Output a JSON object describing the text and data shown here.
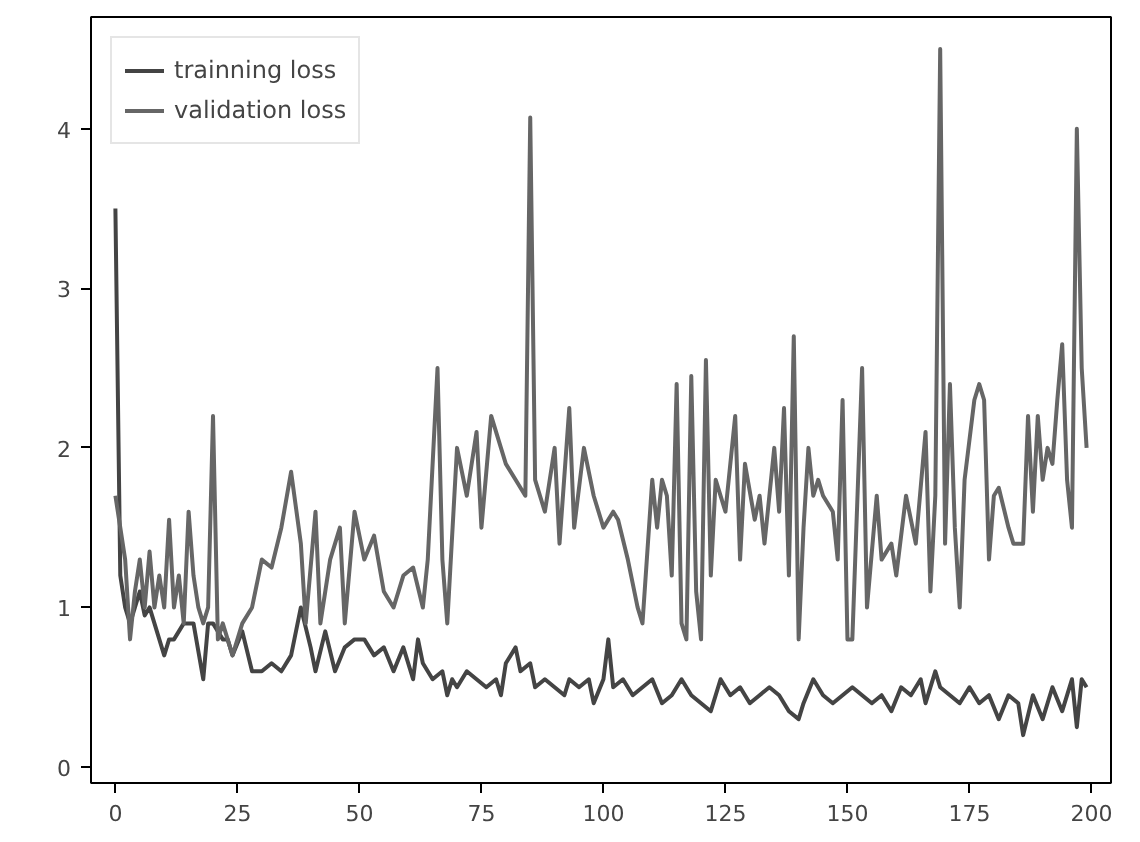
{
  "chart_data": {
    "type": "line",
    "xlim": [
      -5,
      204
    ],
    "ylim": [
      -0.1,
      4.7
    ],
    "xticks": [
      0,
      25,
      50,
      75,
      100,
      125,
      150,
      175,
      200
    ],
    "yticks": [
      0,
      1,
      2,
      3,
      4
    ],
    "grid": false,
    "legend": "top left",
    "line_style": "solid",
    "marker": "none",
    "series": [
      {
        "name": "trainning loss",
        "color": "#444444",
        "x": [
          0,
          1,
          2,
          3,
          5,
          6,
          7,
          8,
          10,
          11,
          12,
          14,
          16,
          18,
          19,
          20,
          22,
          23,
          24,
          26,
          28,
          30,
          32,
          34,
          36,
          38,
          40,
          41,
          43,
          45,
          47,
          49,
          51,
          53,
          55,
          57,
          59,
          61,
          62,
          63,
          65,
          67,
          68,
          69,
          70,
          72,
          74,
          76,
          78,
          79,
          80,
          82,
          83,
          85,
          86,
          88,
          90,
          92,
          93,
          95,
          97,
          98,
          100,
          101,
          102,
          104,
          106,
          108,
          110,
          112,
          114,
          116,
          118,
          120,
          122,
          124,
          126,
          128,
          130,
          132,
          134,
          136,
          138,
          140,
          141,
          143,
          145,
          147,
          149,
          151,
          153,
          155,
          157,
          159,
          161,
          163,
          165,
          166,
          168,
          169,
          171,
          173,
          175,
          177,
          179,
          181,
          183,
          185,
          186,
          188,
          190,
          192,
          194,
          196,
          197,
          198,
          199
        ],
        "values": [
          3.5,
          1.2,
          1.0,
          0.9,
          1.1,
          0.95,
          1.0,
          0.9,
          0.7,
          0.8,
          0.8,
          0.9,
          0.9,
          0.55,
          0.9,
          0.9,
          0.8,
          0.8,
          0.7,
          0.85,
          0.6,
          0.6,
          0.65,
          0.6,
          0.7,
          1.0,
          0.75,
          0.6,
          0.85,
          0.6,
          0.75,
          0.8,
          0.8,
          0.7,
          0.75,
          0.6,
          0.75,
          0.55,
          0.8,
          0.65,
          0.55,
          0.6,
          0.45,
          0.55,
          0.5,
          0.6,
          0.55,
          0.5,
          0.55,
          0.45,
          0.65,
          0.75,
          0.6,
          0.65,
          0.5,
          0.55,
          0.5,
          0.45,
          0.55,
          0.5,
          0.55,
          0.4,
          0.55,
          0.8,
          0.5,
          0.55,
          0.45,
          0.5,
          0.55,
          0.4,
          0.45,
          0.55,
          0.45,
          0.4,
          0.35,
          0.55,
          0.45,
          0.5,
          0.4,
          0.45,
          0.5,
          0.45,
          0.35,
          0.3,
          0.4,
          0.55,
          0.45,
          0.4,
          0.45,
          0.5,
          0.45,
          0.4,
          0.45,
          0.35,
          0.5,
          0.45,
          0.55,
          0.4,
          0.6,
          0.5,
          0.45,
          0.4,
          0.5,
          0.4,
          0.45,
          0.3,
          0.45,
          0.4,
          0.2,
          0.45,
          0.3,
          0.5,
          0.35,
          0.55,
          0.25,
          0.55,
          0.5
        ]
      },
      {
        "name": "validation loss",
        "color": "#666666",
        "x": [
          0,
          1,
          2,
          3,
          4,
          5,
          6,
          7,
          8,
          9,
          10,
          11,
          12,
          13,
          14,
          15,
          16,
          17,
          18,
          19,
          20,
          21,
          22,
          24,
          26,
          28,
          30,
          32,
          34,
          36,
          38,
          39,
          41,
          42,
          44,
          46,
          47,
          49,
          51,
          53,
          55,
          57,
          59,
          61,
          63,
          64,
          66,
          67,
          68,
          70,
          72,
          74,
          75,
          77,
          79,
          80,
          82,
          84,
          85,
          86,
          88,
          90,
          91,
          93,
          94,
          96,
          98,
          100,
          102,
          103,
          105,
          107,
          108,
          110,
          111,
          112,
          113,
          114,
          115,
          116,
          117,
          118,
          119,
          120,
          121,
          122,
          123,
          125,
          127,
          128,
          129,
          131,
          132,
          133,
          135,
          136,
          137,
          138,
          139,
          140,
          141,
          142,
          143,
          144,
          145,
          147,
          148,
          149,
          150,
          151,
          153,
          154,
          156,
          157,
          159,
          160,
          162,
          164,
          166,
          167,
          168,
          169,
          170,
          171,
          172,
          173,
          174,
          176,
          177,
          178,
          179,
          180,
          181,
          183,
          184,
          186,
          187,
          188,
          189,
          190,
          191,
          192,
          193,
          194,
          195,
          196,
          197,
          198,
          199
        ],
        "values": [
          1.7,
          1.5,
          1.3,
          0.8,
          1.1,
          1.3,
          1.0,
          1.35,
          1.0,
          1.2,
          1.0,
          1.55,
          1.0,
          1.2,
          0.9,
          1.6,
          1.2,
          1.0,
          0.9,
          1.0,
          2.2,
          0.8,
          0.9,
          0.7,
          0.9,
          1.0,
          1.3,
          1.25,
          1.5,
          1.85,
          1.4,
          0.9,
          1.6,
          0.9,
          1.3,
          1.5,
          0.9,
          1.6,
          1.3,
          1.45,
          1.1,
          1.0,
          1.2,
          1.25,
          1.0,
          1.3,
          2.5,
          1.3,
          0.9,
          2.0,
          1.7,
          2.1,
          1.5,
          2.2,
          2.0,
          1.9,
          1.8,
          1.7,
          4.07,
          1.8,
          1.6,
          2.0,
          1.4,
          2.25,
          1.5,
          2.0,
          1.7,
          1.5,
          1.6,
          1.55,
          1.3,
          1.0,
          0.9,
          1.8,
          1.5,
          1.8,
          1.7,
          1.2,
          2.4,
          0.9,
          0.8,
          2.45,
          1.1,
          0.8,
          2.55,
          1.2,
          1.8,
          1.6,
          2.2,
          1.3,
          1.9,
          1.55,
          1.7,
          1.4,
          2.0,
          1.6,
          2.25,
          1.2,
          2.7,
          0.8,
          1.5,
          2.0,
          1.7,
          1.8,
          1.7,
          1.6,
          1.3,
          2.3,
          0.8,
          0.8,
          2.5,
          1.0,
          1.7,
          1.3,
          1.4,
          1.2,
          1.7,
          1.4,
          2.1,
          1.1,
          1.7,
          4.5,
          1.4,
          2.4,
          1.5,
          1.0,
          1.8,
          2.3,
          2.4,
          2.3,
          1.3,
          1.7,
          1.75,
          1.5,
          1.4,
          1.4,
          2.2,
          1.6,
          2.2,
          1.8,
          2.0,
          1.9,
          2.3,
          2.65,
          1.8,
          1.5,
          4.0,
          2.5,
          2.0
        ]
      }
    ]
  }
}
